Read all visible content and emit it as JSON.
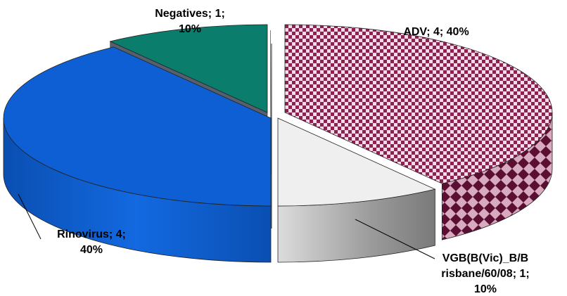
{
  "chart_data": {
    "type": "pie",
    "three_d": true,
    "exploded": true,
    "title": "",
    "slices": [
      {
        "category": "ADV",
        "value": 4,
        "percent": "40%",
        "color": "#8b2252",
        "pattern": "checkerboard",
        "label_lines": [
          "ADV; 4; 40%"
        ]
      },
      {
        "category": "VGB(B(Vic)_B/Brisbane/60/08)",
        "value": 1,
        "percent": "10%",
        "color": "#efefef",
        "label_lines": [
          "VGB(B(Vic)_B/B",
          "risbane/60/08; 1;",
          "10%"
        ]
      },
      {
        "category": "Rinovirus",
        "value": 4,
        "percent": "40%",
        "color": "#0d5fd3",
        "label_lines": [
          "Rinovirus; 4;",
          "40%"
        ]
      },
      {
        "category": "Negatives",
        "value": 1,
        "percent": "10%",
        "color": "#0b7d6c",
        "label_lines": [
          "Negatives; 1;",
          "10%"
        ]
      }
    ]
  }
}
